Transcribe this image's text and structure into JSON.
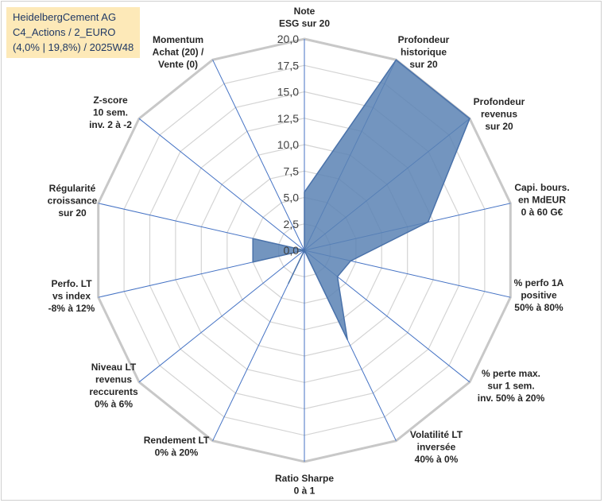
{
  "info": {
    "line1": "HeidelbergCement AG",
    "line2": "C4_Actions / 2_EURO",
    "line3": "(4,0% | 19,8%) / 2025W48"
  },
  "colors": {
    "fill": "#5a82b4",
    "stroke": "#4a72aa",
    "grid": "#d4d4d4",
    "spoke": "#4472c4",
    "box": "#fde9b8"
  },
  "chart_data": {
    "type": "radar",
    "range": [
      0,
      20
    ],
    "ticks": [
      "0,0",
      "2,5",
      "5,0",
      "7,5",
      "10,0",
      "12,5",
      "15,0",
      "17,5",
      "20,0"
    ],
    "tick_values": [
      0,
      2.5,
      5,
      7.5,
      10,
      12.5,
      15,
      17.5,
      20
    ],
    "axes": [
      {
        "label": [
          "Note",
          "ESG sur 20"
        ],
        "value": 5.5
      },
      {
        "label": [
          "Profondeur",
          "historique",
          "sur 20"
        ],
        "value": 20
      },
      {
        "label": [
          "Profondeur",
          "revenus",
          "sur 20"
        ],
        "value": 20
      },
      {
        "label": [
          "Capi. bours.",
          "en MdEUR",
          "0 à 60 G€"
        ],
        "value": 12
      },
      {
        "label": [
          "% perfo 1A",
          "positive",
          "50% à 80%"
        ],
        "value": 4.5
      },
      {
        "label": [
          "% perte max.",
          "sur 1 sem.",
          "inv. 50% à 20%"
        ],
        "value": 4
      },
      {
        "label": [
          "Volatilité LT",
          "inversée",
          "40% à 0%"
        ],
        "value": 9.4
      },
      {
        "label": [
          "Ratio Sharpe",
          "0 à 1"
        ],
        "value": 0
      },
      {
        "label": [
          "Rendement LT",
          "0% à 20%"
        ],
        "value": 3.5
      },
      {
        "label": [
          "Niveau LT",
          "revenus",
          "reccurents",
          "0% à 6%"
        ],
        "value": 0
      },
      {
        "label": [
          "Perfo. LT",
          "vs index",
          "-8% à 12%"
        ],
        "value": 5
      },
      {
        "label": [
          "Régularité",
          "croissance",
          "sur 20"
        ],
        "value": 5
      },
      {
        "label": [
          "Z-score",
          "10 sem.",
          "inv. 2 à -2"
        ],
        "value": 0
      },
      {
        "label": [
          "Momentum",
          "Achat (20) /",
          "Vente (0)"
        ],
        "value": 0
      }
    ]
  }
}
